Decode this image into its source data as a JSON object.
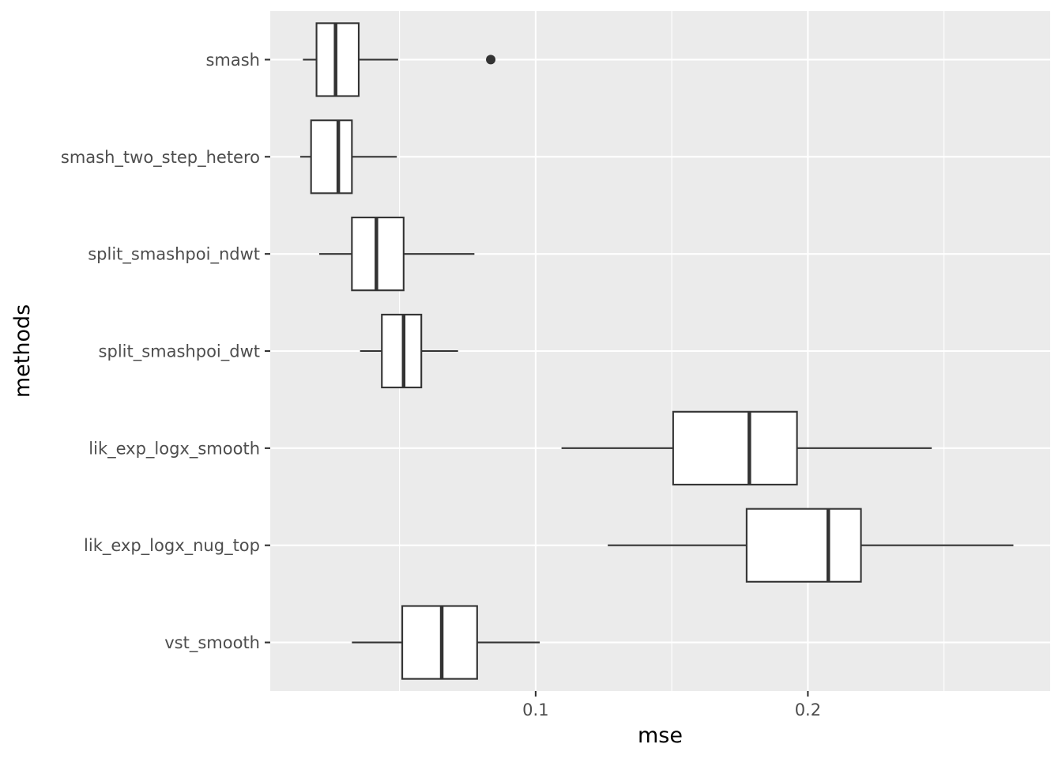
{
  "chart_data": {
    "type": "boxplot",
    "orientation": "horizontal",
    "xlabel": "mse",
    "ylabel": "methods",
    "xlim": [
      0.0025,
      0.289
    ],
    "x_ticks": [
      0.1,
      0.2
    ],
    "x_tick_labels": [
      "0.1",
      "0.2"
    ],
    "x_minor_ticks": [
      0.05,
      0.15,
      0.25
    ],
    "grid": true,
    "categories": [
      "smash",
      "smash_two_step_hetero",
      "split_smashpoi_ndwt",
      "split_smashpoi_dwt",
      "lik_exp_logx_smooth",
      "lik_exp_logx_nug_top",
      "vst_smooth"
    ],
    "boxes": [
      {
        "category": "smash",
        "whisker_low": 0.0145,
        "q1": 0.0195,
        "median": 0.0265,
        "q3": 0.035,
        "whisker_high": 0.0495,
        "outliers": [
          0.0835
        ]
      },
      {
        "category": "smash_two_step_hetero",
        "whisker_low": 0.0135,
        "q1": 0.0175,
        "median": 0.0275,
        "q3": 0.0325,
        "whisker_high": 0.049,
        "outliers": []
      },
      {
        "category": "split_smashpoi_ndwt",
        "whisker_low": 0.0205,
        "q1": 0.0325,
        "median": 0.0415,
        "q3": 0.0515,
        "whisker_high": 0.0775,
        "outliers": []
      },
      {
        "category": "split_smashpoi_dwt",
        "whisker_low": 0.0355,
        "q1": 0.0435,
        "median": 0.0515,
        "q3": 0.058,
        "whisker_high": 0.0715,
        "outliers": []
      },
      {
        "category": "lik_exp_logx_smooth",
        "whisker_low": 0.1095,
        "q1": 0.1505,
        "median": 0.1785,
        "q3": 0.196,
        "whisker_high": 0.2455,
        "outliers": []
      },
      {
        "category": "lik_exp_logx_nug_top",
        "whisker_low": 0.1265,
        "q1": 0.1775,
        "median": 0.2075,
        "q3": 0.2195,
        "whisker_high": 0.2755,
        "outliers": []
      },
      {
        "category": "vst_smooth",
        "whisker_low": 0.0325,
        "q1": 0.051,
        "median": 0.0655,
        "q3": 0.0785,
        "whisker_high": 0.1015,
        "outliers": []
      }
    ]
  },
  "colors": {
    "panel_background": "#ebebeb",
    "grid_major": "#ffffff",
    "box_fill": "#ffffff",
    "box_stroke": "#333333",
    "tick_label": "#4d4d4d",
    "axis_title": "#000000"
  }
}
